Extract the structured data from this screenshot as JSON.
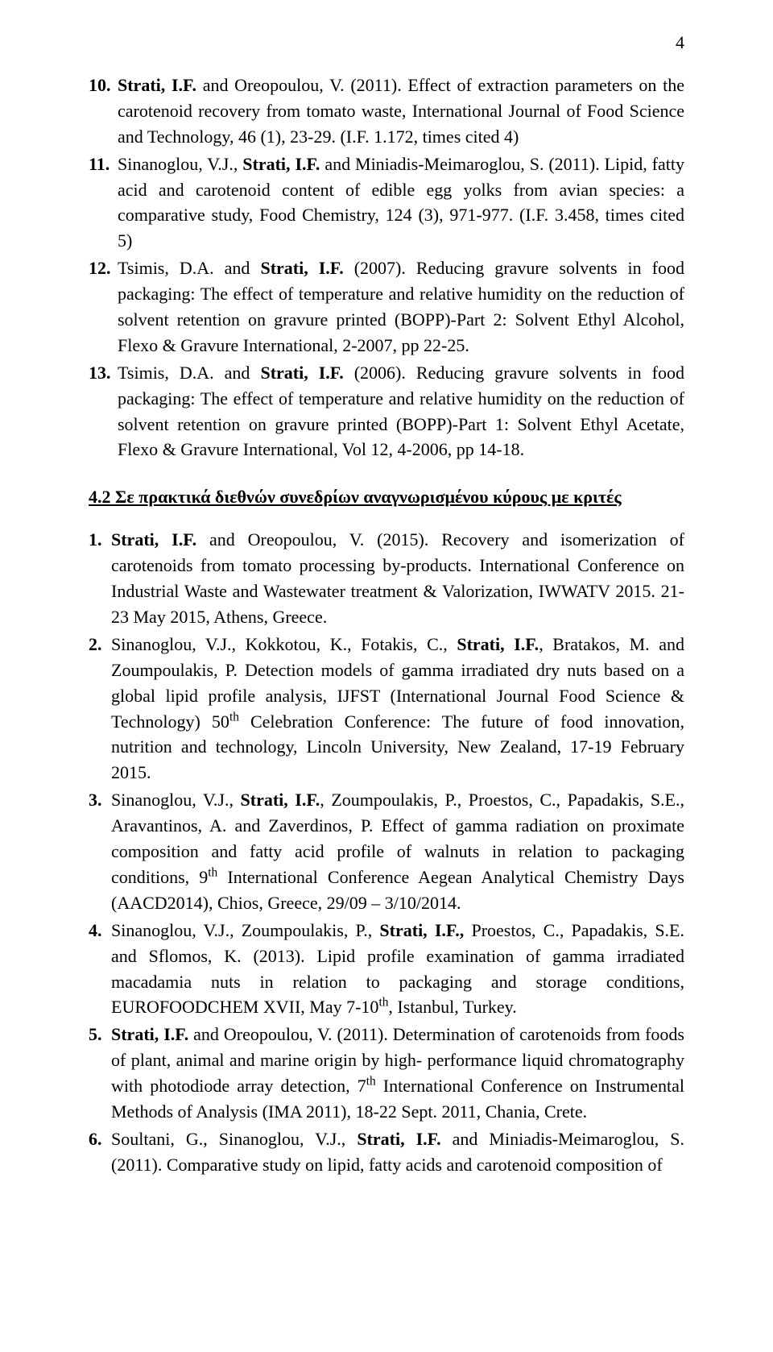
{
  "page_number": "4",
  "section1_refs": [
    {
      "num": "10.",
      "html": "<b>Strati, I.F.</b> and Oreopoulou, V. (2011). Effect of extraction parameters on the carotenoid recovery from tomato waste, International Journal of Food Science and Technology, 46 (1), 23-29. (I.F. 1.172, times cited 4)"
    },
    {
      "num": "11.",
      "html": "Sinanoglou, V.J., <b>Strati, I.F.</b> and Miniadis-Meimaroglou, S. (2011). Lipid, fatty acid and carotenoid content of edible egg yolks from avian species: a comparative study, Food Chemistry, 124 (3), 971-977. (I.F. 3.458, times cited 5)"
    },
    {
      "num": "12.",
      "html": "Tsimis, D.A. and <b>Strati, I.F.</b> (2007). Reducing gravure solvents in food packaging: The effect of temperature and relative humidity on the reduction of solvent retention on gravure printed (BOPP)-Part 2: Solvent Ethyl Alcohol, Flexo &amp; Gravure International, 2-2007, pp 22-25."
    },
    {
      "num": "13.",
      "html": "Tsimis, D.A. and <b>Strati, I.F.</b> (2006). Reducing gravure solvents in food packaging: The effect of temperature and relative humidity on the reduction of solvent retention on gravure printed (BOPP)-Part 1: Solvent Ethyl Acetate, Flexo &amp; Gravure International, Vol 12, 4-2006, pp 14-18."
    }
  ],
  "section2_heading": "4.2 Σε πρακτικά διεθνών συνεδρίων αναγνωρισμένου κύρους με κριτές",
  "section2_refs": [
    {
      "num": "1.",
      "html": "<b>Strati, I.F.</b> and Oreopoulou, V. (2015). Recovery and isomerization of carotenoids from tomato processing by-products. International Conference on Industrial Waste and Wastewater treatment &amp; Valorization, IWWATV 2015. 21-23 May 2015, Athens, Greece."
    },
    {
      "num": "2.",
      "html": "Sinanoglou, V.J., Kokkotou, K., Fotakis, C., <b>Strati, I.F.</b>, Bratakos, M. and Zoumpoulakis, P. Detection models of gamma irradiated dry nuts based on a global lipid profile analysis, IJFST (International Journal Food Science &amp; Technology) 50<sup>th</sup> Celebration Conference: The future of food innovation, nutrition and technology, Lincoln University, New Zealand, 17-19 February 2015."
    },
    {
      "num": "3.",
      "html": "Sinanoglou, V.J., <b>Strati, I.F.</b>, Zoumpoulakis, P., Proestos, C., Papadakis, S.E., Aravantinos, A. and Zaverdinos, P. Effect of gamma radiation on proximate composition and fatty acid profile of walnuts in relation to packaging conditions, 9<sup>th</sup> International Conference Aegean Analytical Chemistry Days (AACD2014), Chios, Greece, 29/09 – 3/10/2014."
    },
    {
      "num": "4.",
      "html": "Sinanoglou, V.J., Zoumpoulakis, P., <b>Strati, I.F.,</b> Proestos, C., Papadakis, S.E. and Sflomos, K. (2013). Lipid profile examination of gamma irradiated macadamia nuts in relation to packaging and storage conditions, EUROFOODCHEM XVII, May 7-10<sup>th</sup>, Istanbul, Turkey."
    },
    {
      "num": "5.",
      "html": "<b>Strati, I.F.</b> and Oreopoulou, V. (2011). Determination of carotenoids from foods of plant, animal and marine origin by high- performance liquid chromatography with photodiode array detection, 7<sup>th</sup> International Conference on Instrumental Methods of Analysis (IMA 2011), 18-22 Sept. 2011, Chania, Crete."
    },
    {
      "num": "6.",
      "html": "Soultani, G., Sinanoglou, V.J., <b>Strati, I.F.</b> and Miniadis-Meimaroglou, S. (2011). Comparative study on lipid, fatty acids and carotenoid composition of"
    }
  ]
}
